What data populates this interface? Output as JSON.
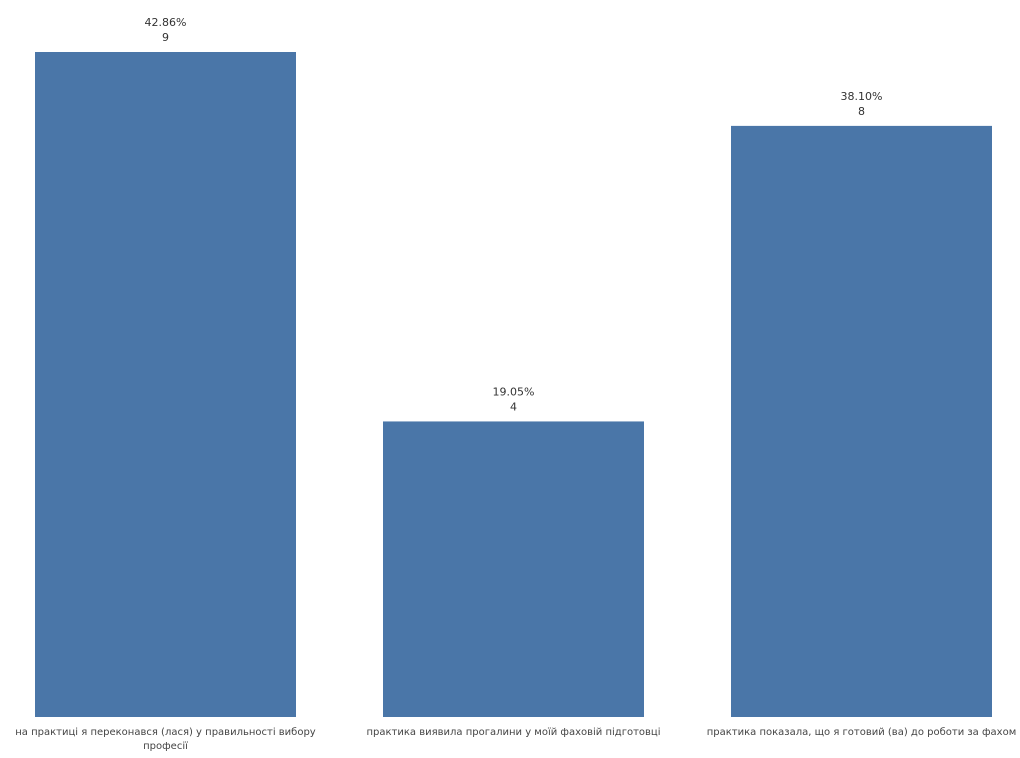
{
  "chart_data": {
    "type": "bar",
    "title": "",
    "xlabel": "",
    "ylabel": "",
    "categories": [
      "на практиці я переконався (лася) у правильності вибору професії",
      "практика виявила прогалини у моїй фаховій підготовці",
      "практика показала, що я готовий (ва) до роботи за фахом"
    ],
    "values": [
      9,
      4,
      8
    ],
    "percent_labels": [
      "42.86%",
      "19.05%",
      "38.10%"
    ],
    "ylim": [
      0,
      9
    ],
    "grid": false,
    "legend": "none",
    "bar_color": "#4a76a8"
  }
}
